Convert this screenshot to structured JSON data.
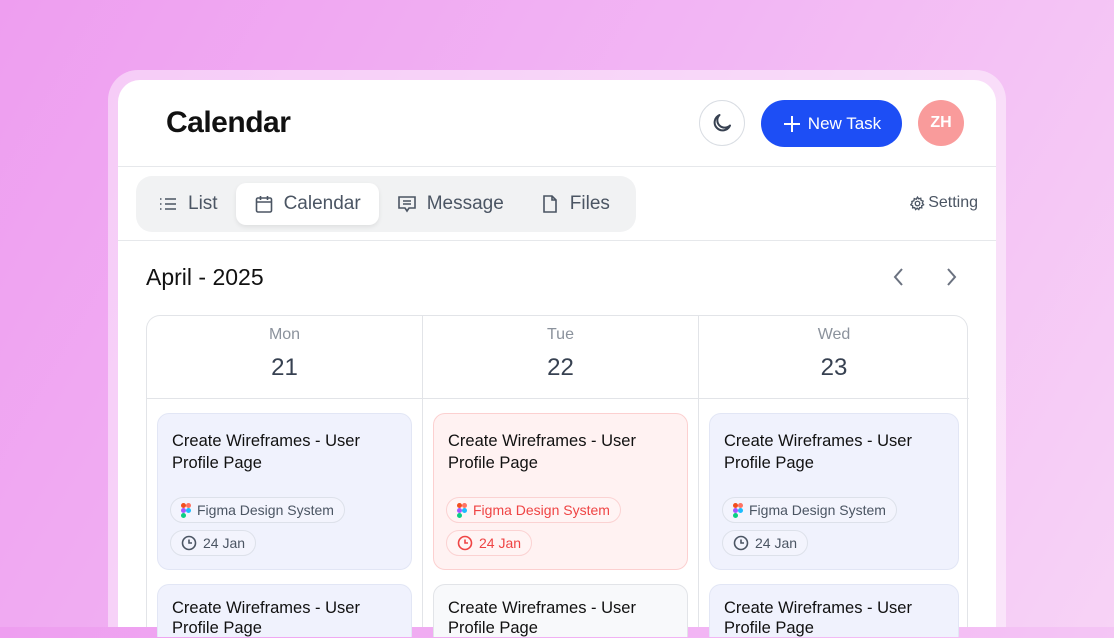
{
  "header": {
    "title": "Calendar",
    "new_task": "New Task",
    "avatar": "ZH"
  },
  "tabs": [
    {
      "label": "List",
      "icon": "list-icon"
    },
    {
      "label": "Calendar",
      "icon": "calendar-icon",
      "active": true
    },
    {
      "label": "Message",
      "icon": "message-icon"
    },
    {
      "label": "Files",
      "icon": "file-icon"
    }
  ],
  "setting": "Setting",
  "month": "April - 2025",
  "days": [
    {
      "dow": "Mon",
      "num": "21",
      "cards": [
        {
          "title": "Create Wireframes - User Profile Page",
          "project": "Figma Design System",
          "date": "24 Jan"
        },
        {
          "title": "Create Wireframes - User Profile Page"
        }
      ]
    },
    {
      "dow": "Tue",
      "num": "22",
      "cards": [
        {
          "title": "Create Wireframes - User Profile Page",
          "project": "Figma Design System",
          "date": "24 Jan",
          "status": "overdue"
        },
        {
          "title": "Create Wireframes - User Profile Page"
        }
      ]
    },
    {
      "dow": "Wed",
      "num": "23",
      "cards": [
        {
          "title": "Create Wireframes - User Profile Page",
          "project": "Figma Design System",
          "date": "24 Jan"
        },
        {
          "title": "Create Wireframes - User Profile Page"
        }
      ]
    }
  ],
  "colors": {
    "accent": "#1d4ef5",
    "overdue": "#ef4444",
    "avatar": "#f99b9b"
  }
}
